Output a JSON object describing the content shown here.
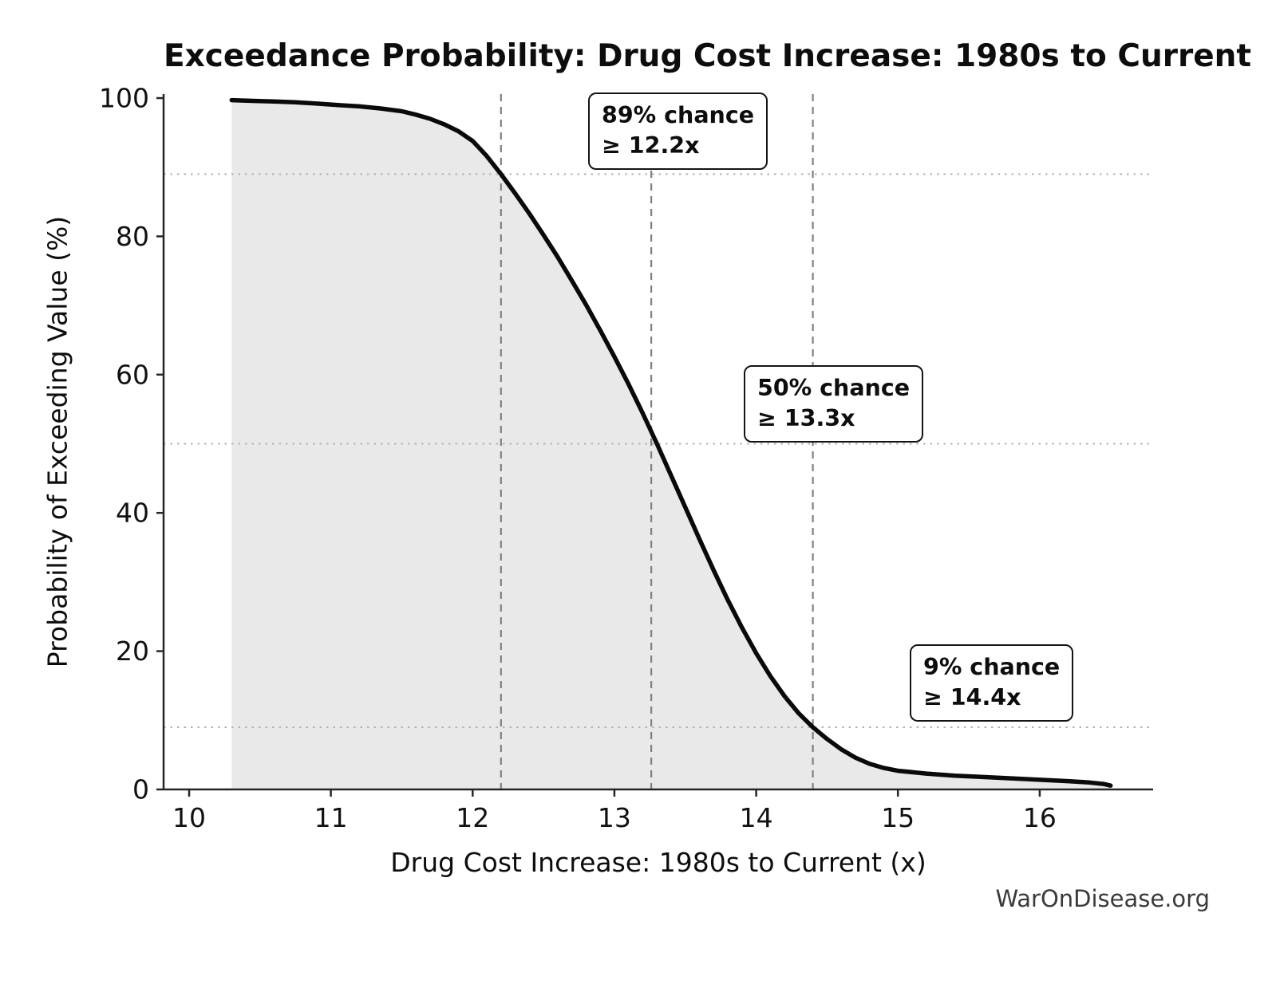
{
  "figure": {
    "watermark": "WarOnDisease.org"
  },
  "chart_data": {
    "type": "line",
    "title": "Exceedance Probability: Drug Cost Increase: 1980s to Current",
    "xlabel": "Drug Cost Increase: 1980s to Current (x)",
    "ylabel": "Probability of Exceeding Value (%)",
    "xlim": [
      9.82,
      16.8
    ],
    "ylim": [
      0,
      100
    ],
    "xticks": [
      10,
      11,
      12,
      13,
      14,
      15,
      16
    ],
    "yticks": [
      0,
      20,
      40,
      60,
      80,
      100
    ],
    "grid": "off",
    "legend": "none",
    "style": {
      "line_color": "#0a0a0a",
      "fill_color": "#e9e9e9",
      "vline_color": "#808080",
      "hline_color": "#b3b3b3",
      "spine_color": "#262626",
      "tick_label_color": "#111111"
    },
    "series": [
      {
        "name": "Exceedance probability",
        "x": [
          10.3,
          10.45,
          10.6,
          10.75,
          10.9,
          11.05,
          11.2,
          11.35,
          11.5,
          11.6,
          11.7,
          11.8,
          11.9,
          12.0,
          12.1,
          12.2,
          12.3,
          12.4,
          12.5,
          12.6,
          12.7,
          12.8,
          12.9,
          13.0,
          13.1,
          13.2,
          13.3,
          13.4,
          13.5,
          13.6,
          13.7,
          13.8,
          13.9,
          14.0,
          14.1,
          14.2,
          14.3,
          14.4,
          14.5,
          14.6,
          14.7,
          14.8,
          14.9,
          15.0,
          15.2,
          15.4,
          15.6,
          15.8,
          16.0,
          16.2,
          16.35,
          16.45,
          16.5
        ],
        "y": [
          99.7,
          99.6,
          99.5,
          99.4,
          99.2,
          99.0,
          98.8,
          98.5,
          98.1,
          97.6,
          97.0,
          96.2,
          95.2,
          93.8,
          91.6,
          89.0,
          86.2,
          83.3,
          80.2,
          77.0,
          73.6,
          70.1,
          66.4,
          62.6,
          58.6,
          54.4,
          50.0,
          45.4,
          40.8,
          36.2,
          31.7,
          27.4,
          23.4,
          19.7,
          16.4,
          13.5,
          11.0,
          9.0,
          7.3,
          5.8,
          4.6,
          3.7,
          3.1,
          2.7,
          2.3,
          2.0,
          1.8,
          1.6,
          1.4,
          1.2,
          1.0,
          0.8,
          0.55
        ]
      }
    ],
    "reference_lines": {
      "vertical_x": [
        12.2,
        13.26,
        14.4
      ],
      "horizontal_y": [
        89,
        50,
        9
      ]
    },
    "annotations": [
      {
        "line1": "89% chance",
        "line2": "≥ 12.2x",
        "x": 12.2,
        "probability": 89
      },
      {
        "line1": "50% chance",
        "line2": "≥ 13.3x",
        "x": 13.3,
        "probability": 50
      },
      {
        "line1": "9% chance",
        "line2": "≥ 14.4x",
        "x": 14.4,
        "probability": 9
      }
    ]
  }
}
